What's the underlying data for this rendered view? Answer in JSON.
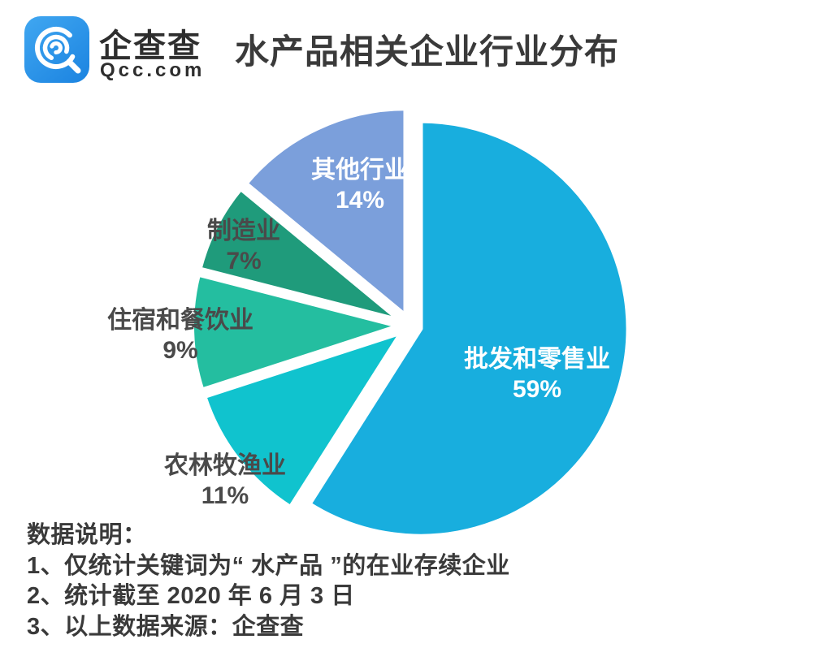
{
  "header": {
    "brand": {
      "name": "企查查",
      "domain": "Qcc.com",
      "logo_color": "#2D9CEA"
    },
    "title": "水产品相关企业行业分布"
  },
  "chart_data": {
    "type": "pie",
    "title": "水产品相关企业行业分布",
    "unit": "percent",
    "start_angle_deg": 0,
    "direction": "clockwise",
    "exploded": true,
    "slices": [
      {
        "label": "批发和零售业",
        "value": 59,
        "pct": "59%",
        "color": "#18AEDE",
        "label_style": "inside-white"
      },
      {
        "label": "农林牧渔业",
        "value": 11,
        "pct": "11%",
        "color": "#10C3CE",
        "label_style": "outside-gray"
      },
      {
        "label": "住宿和餐饮业",
        "value": 9,
        "pct": "9%",
        "color": "#24BEA0",
        "label_style": "outside-gray"
      },
      {
        "label": "制造业",
        "value": 7,
        "pct": "7%",
        "color": "#1F9B7B",
        "label_style": "outside-gray"
      },
      {
        "label": "其他行业",
        "value": 14,
        "pct": "14%",
        "color": "#7B9FDB",
        "label_style": "inside-white"
      }
    ]
  },
  "footer": {
    "heading": "数据说明：",
    "notes": [
      "1、仅统计关键词为“ 水产品 ”的在业存续企业",
      "2、统计截至 2020 年 6 月 3 日",
      "3、以上数据来源：企查查"
    ]
  }
}
